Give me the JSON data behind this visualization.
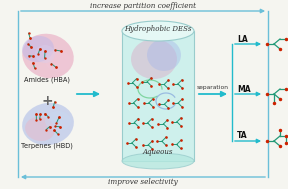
{
  "bg_color": "#f5f5f0",
  "top_text": "increase partition coefficient",
  "bottom_text": "improve selectivity",
  "left_label_amide": "Amides (HBA)",
  "left_label_terp": "Terpenes (HBD)",
  "plus_sign": "+",
  "center_label_top": "Hydrophobic DESs",
  "center_label_bottom": "Aqueous",
  "right_labels": [
    "LA",
    "MA",
    "TA"
  ],
  "separation_text": "separation",
  "border_color": "#6bbfd8",
  "teal": "#22bbcc",
  "mol_green": "#229977",
  "mol_red": "#cc2200",
  "mol_dark": "#228877"
}
